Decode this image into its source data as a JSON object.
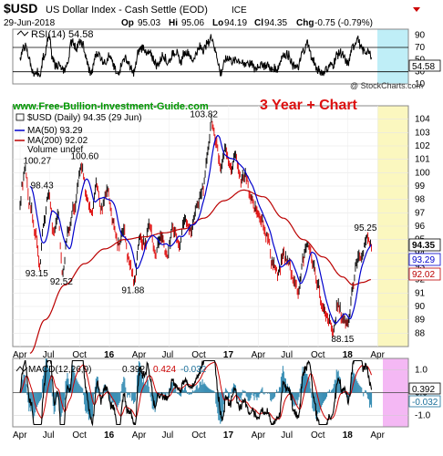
{
  "header": {
    "symbol": "$USD",
    "name": "US Dollar Index - Cash Settle (EOD)",
    "exchange": "ICE",
    "date": "29-Jun-2018",
    "open_label": "Op",
    "open": "95.03",
    "high_label": "Hi",
    "high": "95.06",
    "low_label": "Lo",
    "low": "94.19",
    "close_label": "Cl",
    "close": "94.35",
    "change_label": "Chg",
    "change": "-0.75 (-0.79%)",
    "watermark": "@ StockCharts.com"
  },
  "colors": {
    "price": "#000000",
    "down": "#dd0000",
    "ma50": "#0000cc",
    "ma200": "#bb0000",
    "rsi_highlight": "#bfeef7",
    "price_highlight": "#fbf7bf",
    "macd_highlight": "#f4b8f4",
    "banner": "#dd1111",
    "url": "#009900"
  },
  "annotations": {
    "website": "www.Free-Bullion-Investment-Guide.com",
    "banner": "3 Year + Chart"
  },
  "chart_data": [
    {
      "type": "line",
      "panel": "rsi",
      "legend": "RSI(14) 54.58",
      "last_value": "54.58",
      "ylim": [
        10,
        100
      ],
      "yticks": [
        "90",
        "70",
        "50",
        "30",
        "10"
      ],
      "reference_lines": [
        70,
        30
      ],
      "highlight": "Apr 2018 - Jun 2018"
    },
    {
      "type": "line",
      "panel": "price",
      "legend": {
        "price": "$USD (Daily) 94.35 (29 Jun)",
        "ma50": "MA(50) 93.29",
        "ma200": "MA(200) 92.02",
        "volume": "Volume undef"
      },
      "ylim": [
        87,
        105
      ],
      "yticks": [
        "104",
        "103",
        "102",
        "101",
        "100",
        "99",
        "98",
        "97",
        "96",
        "95",
        "94",
        "93",
        "92",
        "91",
        "90",
        "89",
        "88"
      ],
      "last_labels": {
        "price": "94.35",
        "ma50": "93.29",
        "ma200": "92.02"
      },
      "x_months": [
        "Apr",
        "Jul",
        "Oct",
        "16",
        "Apr",
        "Jul",
        "Oct",
        "17",
        "Apr",
        "Jul",
        "Oct",
        "18",
        "Apr"
      ],
      "price_anchors": [
        [
          0,
          97.5
        ],
        [
          0.2,
          99.2
        ],
        [
          0.5,
          100.27
        ],
        [
          1.0,
          97.5
        ],
        [
          1.6,
          95.4
        ],
        [
          2.0,
          93.15
        ],
        [
          2.4,
          96.4
        ],
        [
          2.9,
          98.43
        ],
        [
          3.4,
          95.3
        ],
        [
          3.8,
          97.0
        ],
        [
          4.3,
          92.52
        ],
        [
          4.8,
          95.6
        ],
        [
          5.4,
          97.3
        ],
        [
          6.2,
          100.6
        ],
        [
          6.7,
          98.4
        ],
        [
          7.2,
          97.0
        ],
        [
          7.7,
          99.0
        ],
        [
          8.2,
          97.2
        ],
        [
          8.8,
          98.7
        ],
        [
          9.3,
          96.6
        ],
        [
          9.9,
          94.5
        ],
        [
          10.4,
          95.8
        ],
        [
          11.0,
          93.3
        ],
        [
          11.5,
          91.88
        ],
        [
          12.0,
          95.0
        ],
        [
          12.6,
          94.6
        ],
        [
          13.0,
          96.2
        ],
        [
          13.6,
          94.0
        ],
        [
          14.2,
          95.3
        ],
        [
          14.8,
          93.9
        ],
        [
          15.4,
          95.8
        ],
        [
          16.0,
          94.7
        ],
        [
          16.6,
          96.7
        ],
        [
          17.2,
          95.6
        ],
        [
          17.8,
          97.6
        ],
        [
          18.4,
          98.9
        ],
        [
          18.8,
          101.0
        ],
        [
          19.3,
          103.82
        ],
        [
          19.7,
          102.5
        ],
        [
          20.2,
          100.4
        ],
        [
          20.7,
          101.9
        ],
        [
          21.2,
          100.4
        ],
        [
          21.7,
          101.2
        ],
        [
          22.2,
          99.5
        ],
        [
          22.7,
          99.8
        ],
        [
          23.2,
          98.1
        ],
        [
          23.8,
          97.2
        ],
        [
          24.3,
          96.5
        ],
        [
          24.9,
          95.2
        ],
        [
          25.4,
          93.3
        ],
        [
          26.0,
          92.4
        ],
        [
          26.5,
          93.9
        ],
        [
          27.0,
          93.3
        ],
        [
          27.5,
          92.1
        ],
        [
          28.0,
          91.1
        ],
        [
          28.5,
          93.6
        ],
        [
          29.0,
          94.7
        ],
        [
          29.5,
          93.2
        ],
        [
          30.0,
          91.6
        ],
        [
          30.5,
          89.7
        ],
        [
          31.0,
          89.0
        ],
        [
          31.5,
          88.15
        ],
        [
          32.0,
          90.1
        ],
        [
          32.5,
          89.1
        ],
        [
          33.0,
          88.8
        ],
        [
          33.5,
          91.6
        ],
        [
          34.0,
          93.6
        ],
        [
          34.5,
          93.9
        ],
        [
          34.9,
          95.25
        ],
        [
          35.2,
          94.8
        ],
        [
          35.4,
          94.35
        ]
      ],
      "ma200_anchors": [
        [
          1.0,
          86.5
        ],
        [
          2.5,
          89.0
        ],
        [
          4.5,
          91.6
        ],
        [
          6.5,
          93.2
        ],
        [
          8.5,
          94.3
        ],
        [
          10.5,
          95.0
        ],
        [
          12.5,
          95.2
        ],
        [
          14.5,
          95.5
        ],
        [
          16.5,
          95.8
        ],
        [
          18.5,
          96.6
        ],
        [
          20.5,
          97.9
        ],
        [
          22.5,
          98.7
        ],
        [
          24.5,
          98.2
        ],
        [
          26.5,
          96.6
        ],
        [
          28.5,
          95.0
        ],
        [
          30.5,
          93.7
        ],
        [
          32.5,
          92.2
        ],
        [
          33.5,
          91.6
        ],
        [
          34.5,
          91.8
        ],
        [
          35.4,
          92.02
        ]
      ],
      "highlight": "Apr 2018 - Jun 2018",
      "annotations": [
        "100.27",
        "98.43",
        "93.15",
        "92.52",
        "100.60",
        "91.88",
        "103.82",
        "95.25",
        "88.15"
      ]
    },
    {
      "type": "line",
      "panel": "macd",
      "legend": {
        "name": "MACD(12,26,9)",
        "macd": "0.392",
        "signal": "0.424",
        "hist": "-0.032"
      },
      "last_labels": {
        "macd": "0.392",
        "hist": "-0.032"
      },
      "ylim": [
        -1.5,
        1.5
      ],
      "yticks": [
        "1.0",
        "0.0",
        "-1.0"
      ],
      "x_months": [
        "Apr",
        "Jul",
        "Oct",
        "16",
        "Apr",
        "Jul",
        "Oct",
        "17",
        "Apr",
        "Jul",
        "Oct",
        "18",
        "Apr"
      ],
      "highlight": "Apr 2018 - Jun 2018"
    }
  ]
}
